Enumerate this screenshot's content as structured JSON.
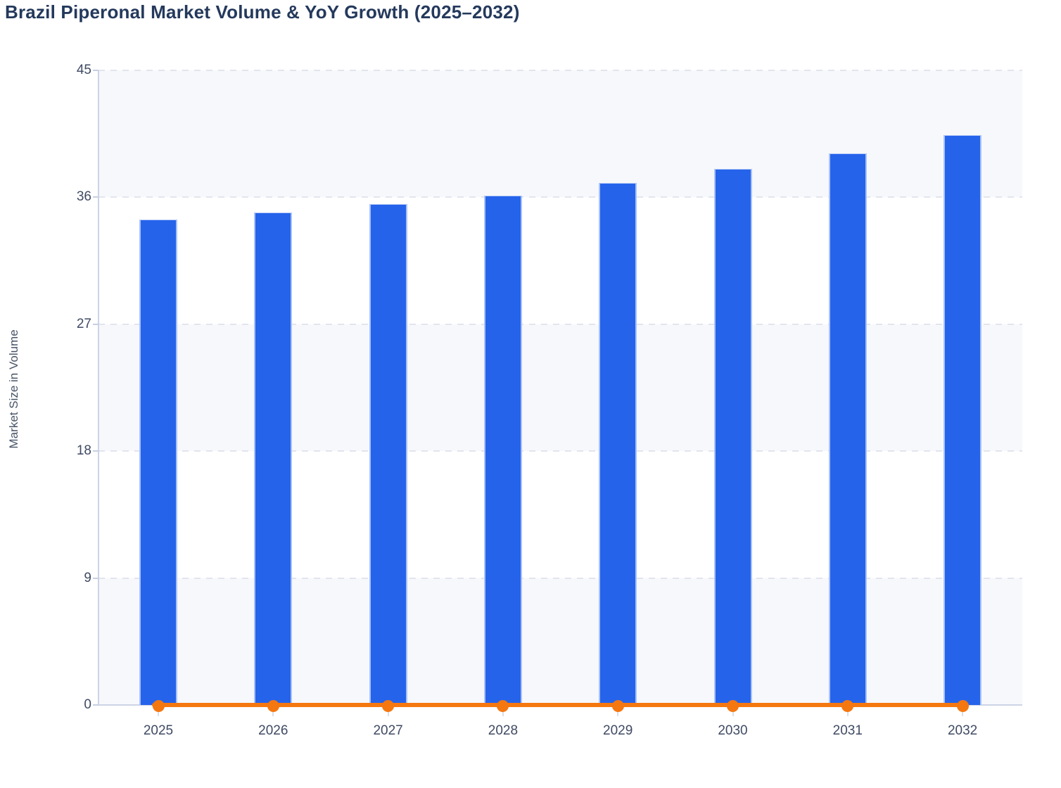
{
  "page": {
    "title": "Brazil Piperonal Market Volume & YoY Growth (2025–2032)"
  },
  "chart_data": {
    "type": "bar",
    "subtype": "bar-and-line combo",
    "title": "Brazil Piperonal Market Volume & YoY Growth (2025–2032)",
    "xlabel": "",
    "ylabel": "Market Size in Volume",
    "categories": [
      "2025",
      "2026",
      "2027",
      "2028",
      "2029",
      "2030",
      "2031",
      "2032"
    ],
    "series": [
      {
        "name": "Market Size in Volume",
        "type": "bar",
        "color": "#2563eb",
        "values": [
          34.4,
          34.9,
          35.5,
          36.1,
          37.0,
          38.0,
          39.1,
          40.4
        ]
      },
      {
        "name": "YoY Growth",
        "type": "line",
        "color": "#f5770f",
        "values": [
          0,
          0,
          0,
          0,
          0,
          0,
          0,
          0
        ],
        "note": "line with circular markers rendered flat at y≈0 on the volume axis"
      }
    ],
    "ylim": [
      0,
      45
    ],
    "yticks": [
      0,
      9,
      18,
      27,
      36,
      45
    ],
    "grid": "dashed horizontal gridlines at each y tick, alternating light/white background bands",
    "legend": "none",
    "colors": {
      "bar": "#2563eb",
      "bar_edge": "#a9c2f5",
      "line": "#f5770f",
      "title_text": "#24395c",
      "axis_text": "#3f4a63",
      "axis_line": "#cdd4e6",
      "band": "#f7f8fb",
      "gridline": "#e2e5ee"
    }
  }
}
